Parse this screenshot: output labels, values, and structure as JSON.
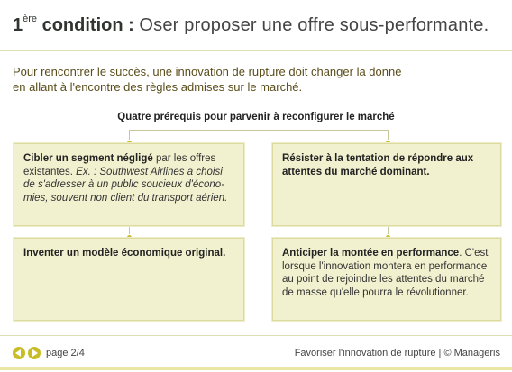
{
  "title": {
    "number": "1",
    "superscript": "ère",
    "condition": "condition :",
    "text": "Oser proposer une offre sous-performante."
  },
  "intro": {
    "line1": "Pour rencontrer le succès, une innovation de rupture doit changer la donne",
    "line2": "en allant à l'encontre des règles admises sur le marché."
  },
  "subtitle": "Quatre prérequis pour parvenir à reconfigurer le marché",
  "boxes": [
    {
      "bold": "Cibler un segment négligé",
      "normal": " par les offres existantes. ",
      "ex_label": "Ex. :",
      "example": " Southwest Airlines a choisi de s'adresser à un public soucieux d'écono-mies, souvent non client du transport aérien."
    },
    {
      "bold": "Résister à la tentation de répondre aux attentes du marché dominant.",
      "normal": "",
      "ex_label": "",
      "example": ""
    },
    {
      "bold": "Inventer un modèle économique original.",
      "normal": "",
      "ex_label": "",
      "example": ""
    },
    {
      "bold": "Anticiper la montée en performance",
      "normal": ". C'est lorsque l'innovation montera en performance au point de rejoindre les attentes du marché de masse qu'elle pourra le révolutionner.",
      "ex_label": "",
      "example": ""
    }
  ],
  "footer": {
    "page": "page 2/4",
    "credit": "Favoriser l'innovation de rupture | © Manageris"
  },
  "colors": {
    "accent": "#c8bd28",
    "box_bg": "#f2f1cf",
    "intro_text": "#5a4d1a"
  },
  "icons": {
    "prev": "arrow-left-circle-icon",
    "next": "arrow-right-circle-icon"
  }
}
